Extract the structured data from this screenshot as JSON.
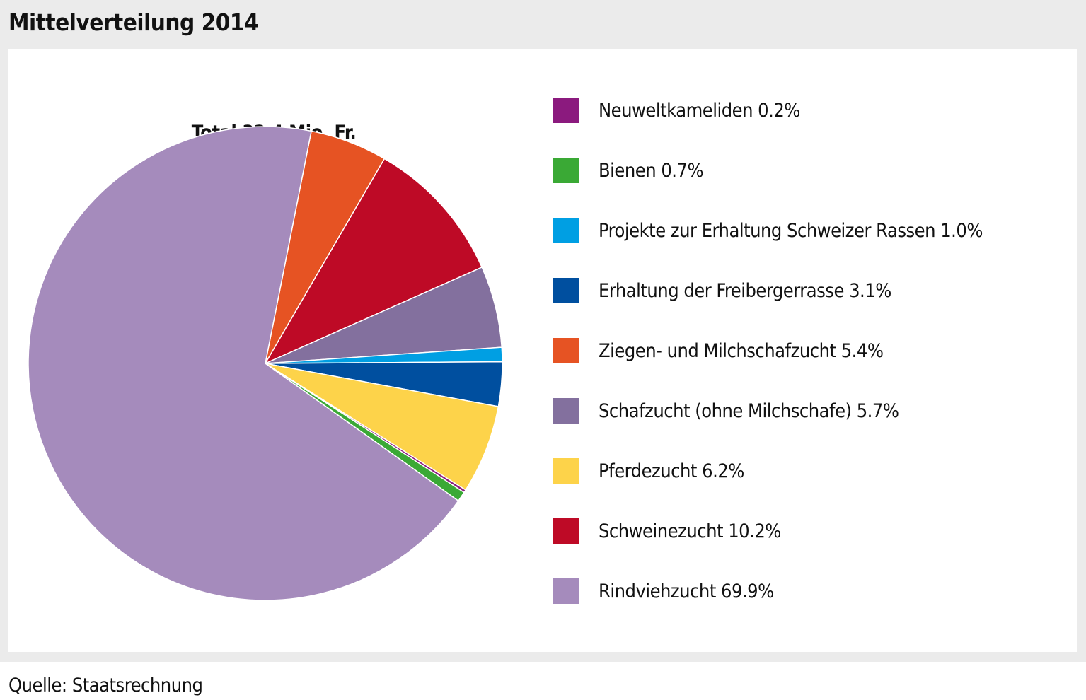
{
  "title": "Mittelverteilung 2014",
  "source": "Quelle: Staatsrechnung",
  "chart_data": {
    "type": "pie",
    "title": "Mittelverteilung 2014",
    "subtitle": "Total 33,4 Mio. Fr.",
    "legend_position": "right",
    "slices": [
      {
        "label": "Ziegen- und Milchschafzucht",
        "value": 5.4,
        "color": "#e65323"
      },
      {
        "label": "Schweinezucht",
        "value": 10.2,
        "color": "#be0a26"
      },
      {
        "label": "Schafzucht (ohne Milchschafe)",
        "value": 5.7,
        "color": "#83709e"
      },
      {
        "label": "Projekte zur Erhaltung Schweizer Rassen",
        "value": 1.0,
        "color": "#009fe3"
      },
      {
        "label": "Erhaltung der Freibergerrasse",
        "value": 3.1,
        "color": "#004f9f"
      },
      {
        "label": "Pferdezucht",
        "value": 6.2,
        "color": "#fdd34a"
      },
      {
        "label": "Neuweltkameliden",
        "value": 0.2,
        "color": "#8b1a7e"
      },
      {
        "label": "Bienen",
        "value": 0.7,
        "color": "#3aa935"
      },
      {
        "label": "Rindviehzucht",
        "value": 69.9,
        "color": "#a58bbc"
      }
    ],
    "legend": [
      {
        "text": "Neuweltkameliden 0.2%",
        "color": "#8b1a7e"
      },
      {
        "text": "Bienen 0.7%",
        "color": "#3aa935"
      },
      {
        "text": "Projekte zur Erhaltung Schweizer Rassen 1.0%",
        "color": "#009fe3"
      },
      {
        "text": "Erhaltung der Freibergerrasse 3.1%",
        "color": "#004f9f"
      },
      {
        "text": "Ziegen- und Milchschafzucht 5.4%",
        "color": "#e65323"
      },
      {
        "text": "Schafzucht (ohne Milchschafe) 5.7%",
        "color": "#83709e"
      },
      {
        "text": "Pferdezucht 6.2%",
        "color": "#fdd34a"
      },
      {
        "text": "Schweinezucht 10.2%",
        "color": "#be0a26"
      },
      {
        "text": "Rindviehzucht 69.9%",
        "color": "#a58bbc"
      }
    ]
  }
}
